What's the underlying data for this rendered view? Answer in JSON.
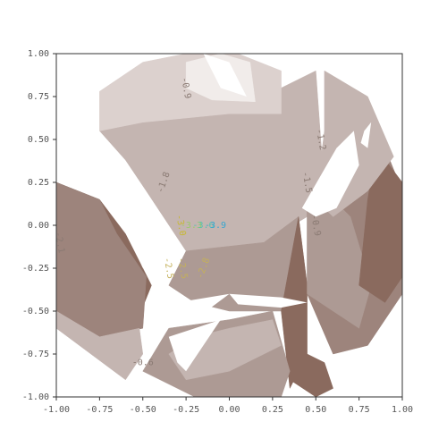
{
  "chart_data": {
    "type": "contour",
    "title": "",
    "xlabel": "",
    "ylabel": "",
    "xlim": [
      -1.0,
      1.0
    ],
    "ylim": [
      -1.0,
      1.0
    ],
    "x_ticks": [
      "-1.00",
      "-0.75",
      "-0.50",
      "-0.25",
      "0.00",
      "0.25",
      "0.50",
      "0.75",
      "1.00"
    ],
    "y_ticks": [
      "1.00",
      "0.75",
      "0.50",
      "0.25",
      "0.00",
      "-0.25",
      "-0.50",
      "-0.75",
      "-1.00"
    ],
    "grid": false,
    "legend": "none",
    "colormap": "pink-brown",
    "colors": {
      "lightest": "#f1ecea",
      "light": "#dcd1ce",
      "mid_light": "#c4b5b1",
      "mid": "#ad9a94",
      "mid_dark": "#9d847c",
      "dark": "#8a6a5e"
    },
    "regions": [
      {
        "level": "dark",
        "polygon": [
          [
            -1.0,
            -0.45
          ],
          [
            -0.55,
            -0.6
          ],
          [
            -0.45,
            -0.35
          ],
          [
            -0.6,
            -0.05
          ],
          [
            -0.75,
            0.15
          ],
          [
            -1.0,
            0.25
          ]
        ]
      },
      {
        "level": "mid_dark",
        "polygon": [
          [
            -1.0,
            0.25
          ],
          [
            -0.75,
            0.15
          ],
          [
            -0.65,
            -0.05
          ],
          [
            -0.48,
            -0.3
          ],
          [
            -0.5,
            -0.6
          ],
          [
            -0.75,
            -0.65
          ],
          [
            -1.0,
            -0.5
          ]
        ]
      },
      {
        "level": "mid_light",
        "polygon": [
          [
            -1.0,
            -0.5
          ],
          [
            -0.75,
            -0.65
          ],
          [
            -0.52,
            -0.6
          ],
          [
            -0.5,
            -0.75
          ],
          [
            -0.6,
            -0.9
          ],
          [
            -1.0,
            -0.6
          ]
        ]
      },
      {
        "level": "mid_light",
        "polygon": [
          [
            -0.75,
            0.55
          ],
          [
            -0.5,
            0.6
          ],
          [
            0.0,
            0.65
          ],
          [
            0.5,
            0.9
          ],
          [
            0.55,
            0.2
          ],
          [
            0.45,
            0.05
          ],
          [
            0.2,
            -0.1
          ],
          [
            -0.25,
            -0.15
          ],
          [
            -0.48,
            0.2
          ],
          [
            -0.6,
            0.38
          ]
        ]
      },
      {
        "level": "light",
        "polygon": [
          [
            -0.75,
            0.55
          ],
          [
            -0.75,
            0.78
          ],
          [
            -0.5,
            0.95
          ],
          [
            -0.25,
            1.0
          ],
          [
            0.05,
            1.0
          ],
          [
            0.3,
            0.9
          ],
          [
            0.3,
            0.65
          ],
          [
            0.0,
            0.65
          ],
          [
            -0.5,
            0.6
          ]
        ]
      },
      {
        "level": "lightest",
        "polygon": [
          [
            -0.25,
            0.95
          ],
          [
            -0.05,
            1.0
          ],
          [
            0.12,
            0.95
          ],
          [
            0.15,
            0.72
          ],
          [
            -0.1,
            0.73
          ],
          [
            -0.25,
            0.8
          ]
        ]
      },
      {
        "level": "mid",
        "polygon": [
          [
            -0.25,
            -0.15
          ],
          [
            0.2,
            -0.1
          ],
          [
            0.4,
            0.05
          ],
          [
            0.45,
            -0.35
          ],
          [
            0.3,
            -0.5
          ],
          [
            0.0,
            -0.5
          ],
          [
            -0.2,
            -0.45
          ],
          [
            -0.35,
            -0.35
          ]
        ]
      },
      {
        "level": "dark",
        "polygon": [
          [
            0.3,
            -0.5
          ],
          [
            0.4,
            0.05
          ],
          [
            0.45,
            -0.35
          ],
          [
            0.45,
            -0.75
          ],
          [
            0.35,
            -0.95
          ]
        ]
      },
      {
        "level": "mid",
        "polygon": [
          [
            -0.35,
            -0.6
          ],
          [
            0.0,
            -0.55
          ],
          [
            0.25,
            -0.5
          ],
          [
            0.35,
            -0.85
          ],
          [
            0.3,
            -1.0
          ],
          [
            -0.2,
            -1.0
          ],
          [
            -0.5,
            -0.85
          ]
        ]
      },
      {
        "level": "mid_dark",
        "polygon": [
          [
            0.45,
            0.1
          ],
          [
            0.9,
            0.45
          ],
          [
            1.0,
            0.2
          ],
          [
            1.0,
            -0.4
          ],
          [
            0.8,
            -0.7
          ],
          [
            0.6,
            -0.75
          ],
          [
            0.45,
            -0.4
          ]
        ]
      },
      {
        "level": "mid",
        "polygon": [
          [
            0.55,
            0.2
          ],
          [
            0.7,
            0.05
          ],
          [
            0.82,
            -0.35
          ],
          [
            0.75,
            -0.6
          ],
          [
            0.45,
            -0.4
          ],
          [
            0.45,
            0.1
          ]
        ]
      },
      {
        "level": "dark",
        "polygon": [
          [
            0.85,
            0.45
          ],
          [
            1.0,
            0.25
          ],
          [
            1.0,
            -0.3
          ],
          [
            0.9,
            -0.45
          ],
          [
            0.75,
            -0.35
          ],
          [
            0.8,
            0.15
          ]
        ]
      },
      {
        "level": "mid_light",
        "polygon": [
          [
            0.55,
            0.9
          ],
          [
            0.8,
            0.75
          ],
          [
            0.95,
            0.4
          ],
          [
            0.8,
            0.2
          ],
          [
            0.6,
            0.05
          ],
          [
            0.5,
            0.15
          ],
          [
            0.55,
            0.55
          ]
        ]
      },
      {
        "level": "mid_light",
        "polygon": [
          [
            -0.35,
            -0.75
          ],
          [
            -0.2,
            -0.65
          ],
          [
            0.0,
            -0.6
          ],
          [
            0.25,
            -0.55
          ],
          [
            0.3,
            -0.7
          ],
          [
            0.0,
            -0.85
          ],
          [
            -0.25,
            -0.9
          ]
        ]
      },
      {
        "level": "dark",
        "polygon": [
          [
            0.35,
            -0.9
          ],
          [
            0.5,
            -1.0
          ],
          [
            0.6,
            -0.95
          ],
          [
            0.55,
            -0.8
          ],
          [
            0.45,
            -0.75
          ]
        ]
      }
    ],
    "voids": [
      {
        "polygon": [
          [
            -0.75,
            0.25
          ],
          [
            -0.55,
            0.25
          ],
          [
            -0.48,
            0.0
          ],
          [
            -0.5,
            -0.25
          ],
          [
            -0.62,
            0.05
          ]
        ]
      },
      {
        "polygon": [
          [
            0.42,
            0.1
          ],
          [
            0.62,
            0.45
          ],
          [
            0.72,
            0.55
          ],
          [
            0.75,
            0.35
          ],
          [
            0.62,
            0.1
          ],
          [
            0.5,
            0.05
          ]
        ]
      },
      {
        "polygon": [
          [
            0.78,
            0.55
          ],
          [
            0.82,
            0.6
          ],
          [
            0.8,
            0.45
          ],
          [
            0.76,
            0.48
          ]
        ]
      },
      {
        "polygon": [
          [
            -0.15,
            1.0
          ],
          [
            0.0,
            0.95
          ],
          [
            0.1,
            0.75
          ],
          [
            -0.05,
            0.8
          ]
        ]
      },
      {
        "polygon": [
          [
            -0.45,
            -0.5
          ],
          [
            -0.3,
            -0.45
          ],
          [
            0.0,
            -0.4
          ],
          [
            -0.2,
            -0.55
          ],
          [
            -0.4,
            -0.55
          ]
        ]
      },
      {
        "polygon": [
          [
            0.0,
            -0.4
          ],
          [
            0.3,
            -0.42
          ],
          [
            0.45,
            -0.45
          ],
          [
            0.3,
            -0.48
          ],
          [
            0.05,
            -0.46
          ]
        ]
      },
      {
        "polygon": [
          [
            -0.35,
            -0.65
          ],
          [
            -0.2,
            -0.6
          ],
          [
            -0.05,
            -0.55
          ],
          [
            -0.15,
            -0.7
          ],
          [
            -0.25,
            -0.85
          ],
          [
            -0.3,
            -0.8
          ]
        ]
      },
      {
        "polygon": [
          [
            0.47,
            -0.6
          ],
          [
            0.5,
            -0.7
          ],
          [
            0.48,
            -0.55
          ]
        ]
      }
    ],
    "contour_labels": [
      {
        "text": "-1.8",
        "x": -0.38,
        "y": 0.25,
        "angle": -70,
        "color": "#8a7a73"
      },
      {
        "text": "-1.5",
        "x": 0.45,
        "y": 0.25,
        "angle": 80,
        "color": "#8a7a73"
      },
      {
        "text": "-1.2",
        "x": 0.53,
        "y": 0.5,
        "angle": 80,
        "color": "#8a7a73"
      },
      {
        "text": "-0.9",
        "x": -0.25,
        "y": 0.8,
        "angle": 80,
        "color": "#8a7a73"
      },
      {
        "text": "-0.9",
        "x": 0.5,
        "y": 0.0,
        "angle": 80,
        "color": "#8a7a73"
      },
      {
        "text": "-2.1",
        "x": -0.98,
        "y": -0.1,
        "angle": 80,
        "color": "#8a7a73"
      },
      {
        "text": "-3.0",
        "x": -0.28,
        "y": 0.0,
        "angle": 80,
        "color": "#c8b832"
      },
      {
        "text": "-3.3",
        "x": -0.22,
        "y": 0.0,
        "angle": 0,
        "color": "#9acb6a"
      },
      {
        "text": "-3.6",
        "x": -0.15,
        "y": 0.0,
        "angle": 0,
        "color": "#55c2b0"
      },
      {
        "text": "-3.9",
        "x": -0.08,
        "y": 0.0,
        "angle": 0,
        "color": "#37a6d0"
      },
      {
        "text": "-2.5",
        "x": -0.35,
        "y": -0.25,
        "angle": 80,
        "color": "#c4b05a"
      },
      {
        "text": "-2.5",
        "x": -0.27,
        "y": -0.25,
        "angle": 80,
        "color": "#c4b05a"
      },
      {
        "text": "-2.8",
        "x": -0.15,
        "y": -0.25,
        "angle": -70,
        "color": "#c4b05a"
      },
      {
        "text": "-0.6",
        "x": -0.5,
        "y": -0.8,
        "angle": 0,
        "color": "#8a7a73"
      }
    ]
  }
}
